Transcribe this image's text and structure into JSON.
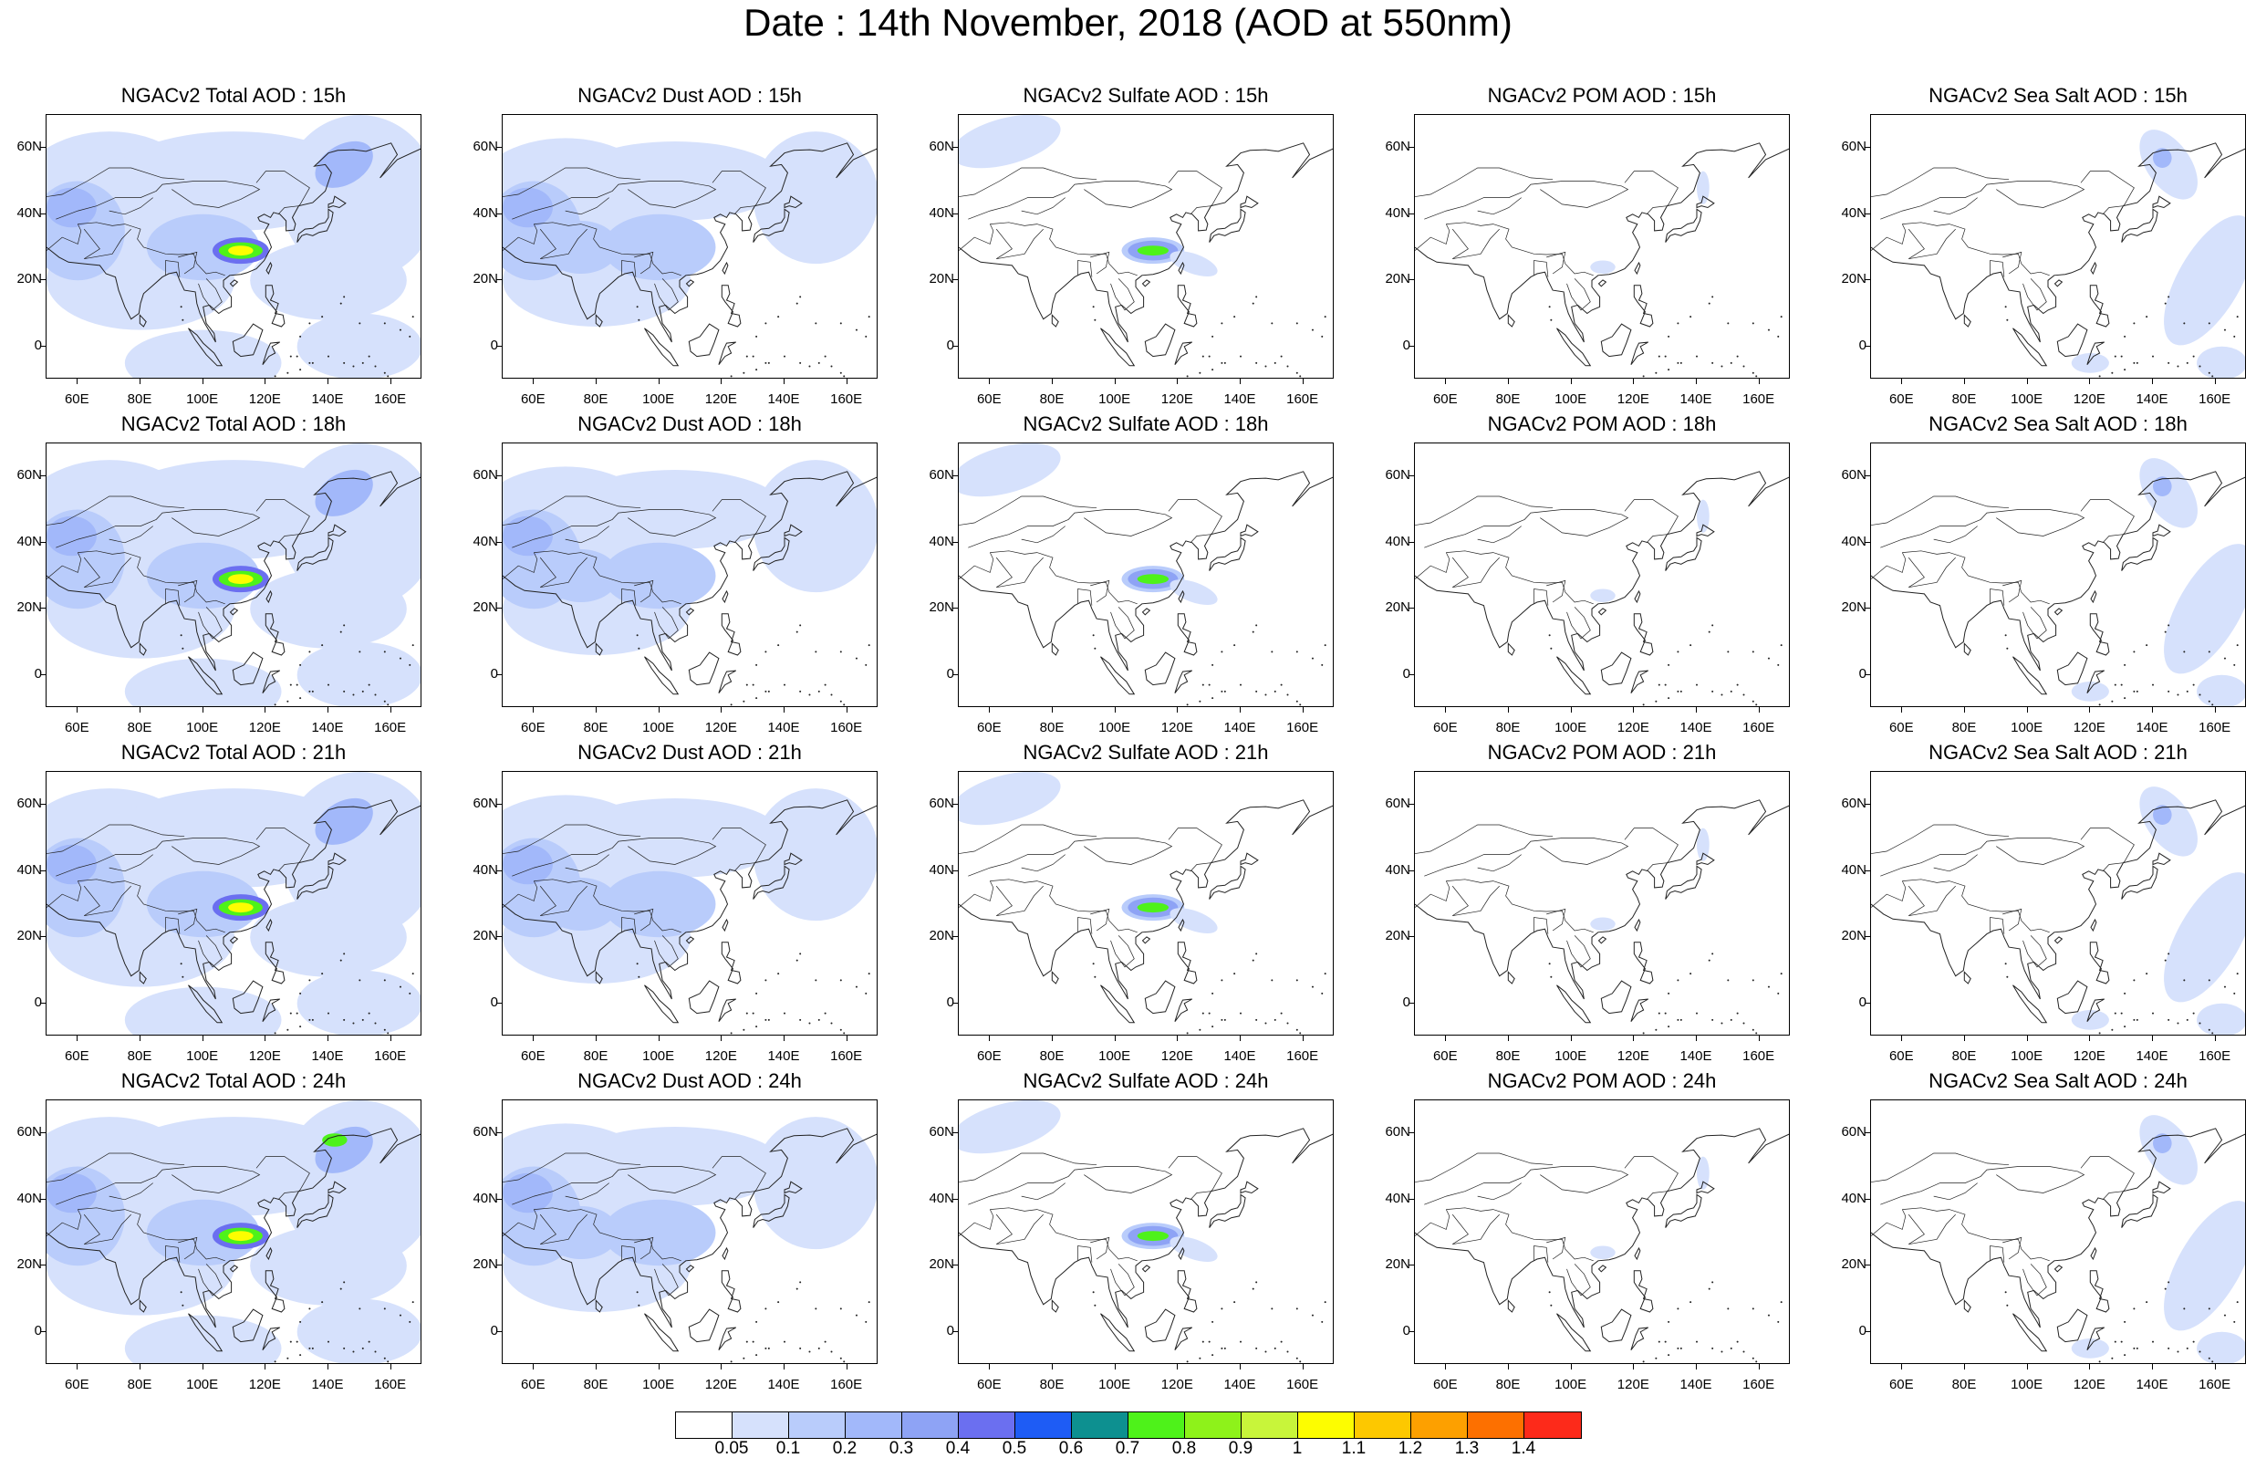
{
  "title": "Date : 14th November, 2018 (AOD at 550nm)",
  "axes": {
    "y_ticks": [
      "60N",
      "40N",
      "20N",
      "0"
    ],
    "x_ticks": [
      "60E",
      "80E",
      "100E",
      "120E",
      "140E",
      "160E"
    ]
  },
  "panels": [
    [
      {
        "title": "NGACv2 Total AOD : 15h",
        "species": "total"
      },
      {
        "title": "NGACv2 Dust AOD : 15h",
        "species": "dust"
      },
      {
        "title": "NGACv2 Sulfate AOD : 15h",
        "species": "sulfate"
      },
      {
        "title": "NGACv2 POM AOD : 15h",
        "species": "pom"
      },
      {
        "title": "NGACv2 Sea Salt AOD : 15h",
        "species": "seasalt"
      }
    ],
    [
      {
        "title": "NGACv2 Total AOD : 18h",
        "species": "total"
      },
      {
        "title": "NGACv2 Dust AOD : 18h",
        "species": "dust"
      },
      {
        "title": "NGACv2 Sulfate AOD : 18h",
        "species": "sulfate"
      },
      {
        "title": "NGACv2 POM AOD : 18h",
        "species": "pom"
      },
      {
        "title": "NGACv2 Sea Salt AOD : 18h",
        "species": "seasalt"
      }
    ],
    [
      {
        "title": "NGACv2 Total AOD : 21h",
        "species": "total"
      },
      {
        "title": "NGACv2 Dust AOD : 21h",
        "species": "dust"
      },
      {
        "title": "NGACv2 Sulfate AOD : 21h",
        "species": "sulfate"
      },
      {
        "title": "NGACv2 POM AOD : 21h",
        "species": "pom"
      },
      {
        "title": "NGACv2 Sea Salt AOD : 21h",
        "species": "seasalt"
      }
    ],
    [
      {
        "title": "NGACv2 Total AOD : 24h",
        "species": "total"
      },
      {
        "title": "NGACv2 Dust AOD : 24h",
        "species": "dust"
      },
      {
        "title": "NGACv2 Sulfate AOD : 24h",
        "species": "sulfate"
      },
      {
        "title": "NGACv2 POM AOD : 24h",
        "species": "pom"
      },
      {
        "title": "NGACv2 Sea Salt  AOD : 24h",
        "species": "seasalt"
      }
    ]
  ],
  "colorbar": {
    "colors": [
      "#ffffff",
      "#d6e1fc",
      "#b9ccfb",
      "#a2b8fa",
      "#8ea3f5",
      "#6b6ff0",
      "#1e5cf5",
      "#0d9090",
      "#4ef21a",
      "#8ef21a",
      "#c8f53a",
      "#fdfd00",
      "#fdc800",
      "#fda000",
      "#fd7000",
      "#fd2a1a"
    ],
    "labels": [
      "0.05",
      "0.1",
      "0.2",
      "0.3",
      "0.4",
      "0.5",
      "0.6",
      "0.7",
      "0.8",
      "0.9",
      "1",
      "1.1",
      "1.2",
      "1.3",
      "1.4"
    ]
  }
}
